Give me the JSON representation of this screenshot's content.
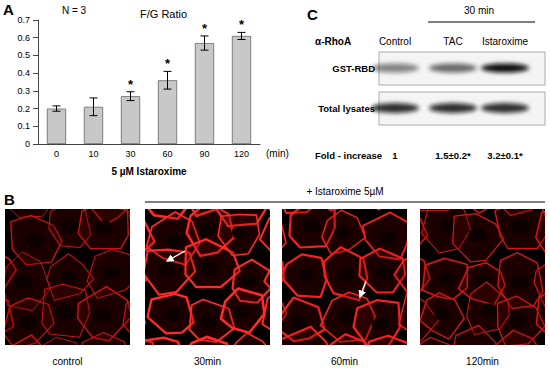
{
  "chart_data": {
    "label": "A",
    "type": "bar",
    "title": "F/G Ratio",
    "annotation": "N = 3",
    "x_label": "5 µM Istaroxime",
    "x_unit": "(min)",
    "categories": [
      "0",
      "10",
      "30",
      "60",
      "90",
      "120"
    ],
    "values": [
      0.2,
      0.21,
      0.27,
      0.36,
      0.57,
      0.61
    ],
    "errors": [
      0.015,
      0.05,
      0.025,
      0.05,
      0.04,
      0.02
    ],
    "significance": [
      null,
      null,
      "*",
      "*",
      "*",
      "*"
    ],
    "color": "#c8c8c8",
    "ylim": [
      0,
      0.7
    ],
    "yticks": [
      0,
      0.1,
      0.2,
      0.3,
      0.4,
      0.5,
      0.6,
      0.7
    ],
    "grid": false
  },
  "blot": {
    "label": "C",
    "time": "30 min",
    "antibody": "α-RhoA",
    "columns": [
      "Control",
      "TAC",
      "Istaroxime"
    ],
    "rows": [
      "GST-RBD",
      "Total lysates"
    ],
    "fold_label": "Fold - increase",
    "fold_values": [
      "1",
      "1.5±0.2*",
      "3.2±0.1*"
    ]
  },
  "micrographs": {
    "label": "B",
    "treatment": "+ Istaroxime 5µM",
    "panels": [
      "control",
      "30min",
      "60min",
      "120min"
    ]
  }
}
